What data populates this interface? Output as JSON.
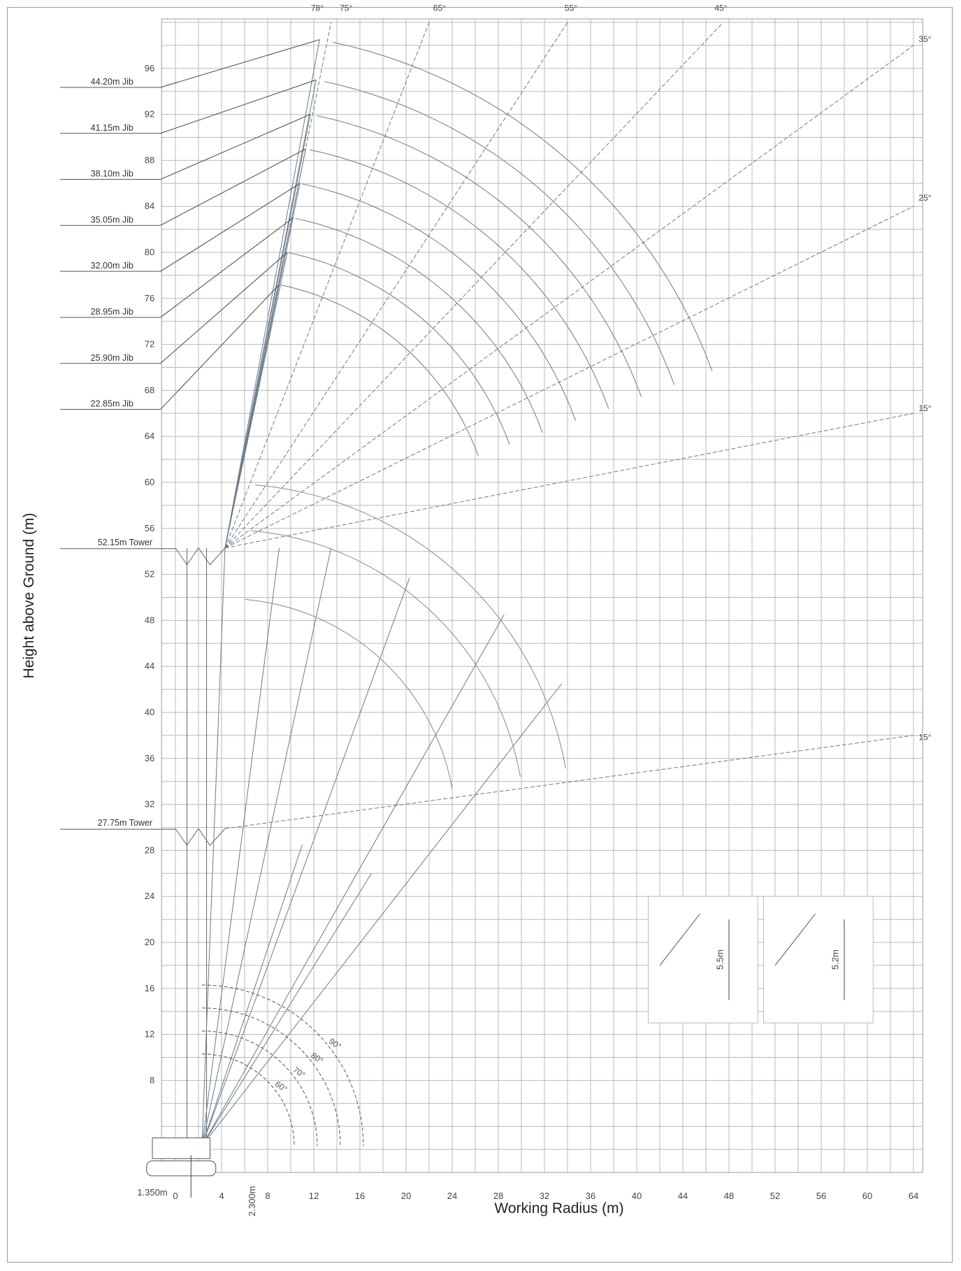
{
  "chart_data": {
    "type": "line",
    "xlabel": "Working Radius (m)",
    "ylabel": "Height above Ground (m)",
    "xlim": [
      -1,
      65
    ],
    "ylim": [
      0,
      100
    ],
    "x_ticks": [
      "0",
      "4",
      "8",
      "12",
      "16",
      "20",
      "24",
      "28",
      "32",
      "36",
      "40",
      "44",
      "48",
      "52",
      "56",
      "60",
      "64"
    ],
    "y_ticks": [
      "8",
      "12",
      "16",
      "20",
      "24",
      "28",
      "32",
      "36",
      "40",
      "44",
      "48",
      "52",
      "56",
      "60",
      "64",
      "68",
      "72",
      "76",
      "80",
      "84",
      "88",
      "92",
      "96"
    ],
    "grid": true,
    "towers": [
      {
        "label": "52.15m Tower",
        "height": 54.3
      },
      {
        "label": "27.75m Tower",
        "height": 29.9
      }
    ],
    "jibs": [
      {
        "label": "44.20m Jib",
        "tip": [
          12.5,
          98.5
        ]
      },
      {
        "label": "41.15m Jib",
        "tip": [
          12.2,
          95.0
        ]
      },
      {
        "label": "38.10m Jib",
        "tip": [
          11.7,
          92.0
        ]
      },
      {
        "label": "35.05m Jib",
        "tip": [
          11.3,
          89.0
        ]
      },
      {
        "label": "32.00m Jib",
        "tip": [
          10.8,
          86.0
        ]
      },
      {
        "label": "28.95m Jib",
        "tip": [
          10.2,
          83.0
        ]
      },
      {
        "label": "25.90m Jib",
        "tip": [
          9.7,
          80.0
        ]
      },
      {
        "label": "22.85m Jib",
        "tip": [
          9.0,
          77.2
        ]
      }
    ],
    "jib_angle_labels": [
      "78°",
      "75°",
      "65°",
      "55°",
      "45°",
      "35°",
      "25°",
      "15°",
      "15°"
    ],
    "luffing_angle_labels": [
      "90°",
      "80°",
      "70°",
      "60°"
    ],
    "dimensions": {
      "radius_offset": "1.350m",
      "pivot_height": "2.300m",
      "detail_a": "5.5m",
      "detail_b": "5.2m"
    },
    "jib_origin_top": [
      4.3,
      54.3
    ],
    "jib_origin_low": [
      4.3,
      29.9
    ]
  }
}
